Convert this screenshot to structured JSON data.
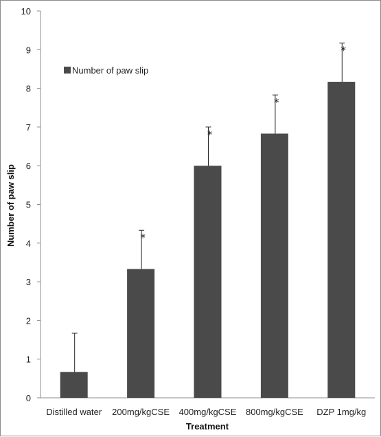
{
  "chart_data": {
    "type": "bar",
    "categories": [
      "Distilled water",
      "200mg/kgCSE",
      "400mg/kgCSE",
      "800mg/kgCSE",
      "DZP 1mg/kg"
    ],
    "series": [
      {
        "name": "Number of paw slip",
        "values": [
          0.67,
          3.33,
          6.0,
          6.83,
          8.17
        ],
        "error": [
          1.0,
          1.0,
          1.0,
          1.0,
          1.0
        ],
        "significance": [
          "",
          "*",
          "*",
          "*",
          "*"
        ]
      }
    ],
    "xlabel": "Treatment",
    "ylabel": "Number of paw slip",
    "ylim": [
      0,
      10
    ],
    "yticks": [
      0,
      1,
      2,
      3,
      4,
      5,
      6,
      7,
      8,
      9,
      10
    ],
    "grid": false,
    "legend": "top-left",
    "colors": {
      "bar": "#4a4a4a",
      "axis": "#8c8c8c",
      "error": "#222222"
    }
  }
}
